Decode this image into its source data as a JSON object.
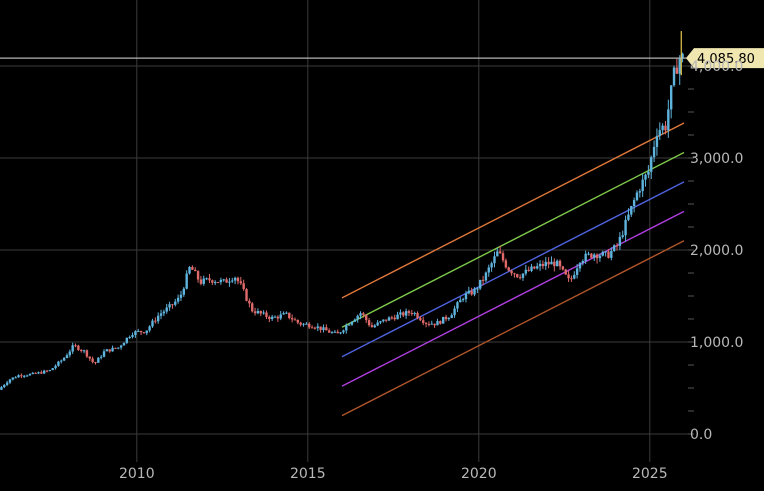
{
  "chart_data": {
    "type": "candlestick",
    "title": "",
    "xlabel": "",
    "ylabel": "",
    "x_ticks": [
      "2010",
      "2015",
      "2020",
      "2025"
    ],
    "y_ticks": [
      "0.0",
      "1,000.0",
      "2,000.0",
      "3,000.0",
      "4,000.0"
    ],
    "y_range": [
      -480,
      4530
    ],
    "x_range": [
      2006.0,
      2026.0
    ],
    "grid": true,
    "current_price_label": "4,085.80",
    "current_price": 4085.8,
    "colors": {
      "up": "#5fb4de",
      "down": "#e06a6a",
      "grid": "#3b3b3b",
      "price_line": "#b4b4b4",
      "price_tag": "#f0e6b0"
    },
    "price_series": [
      [
        2006.0,
        480
      ],
      [
        2006.3,
        590
      ],
      [
        2006.6,
        640
      ],
      [
        2007.0,
        650
      ],
      [
        2007.5,
        690
      ],
      [
        2007.9,
        820
      ],
      [
        2008.2,
        960
      ],
      [
        2008.5,
        900
      ],
      [
        2008.8,
        760
      ],
      [
        2009.1,
        900
      ],
      [
        2009.5,
        940
      ],
      [
        2009.9,
        1100
      ],
      [
        2010.3,
        1120
      ],
      [
        2010.7,
        1300
      ],
      [
        2011.0,
        1380
      ],
      [
        2011.3,
        1480
      ],
      [
        2011.6,
        1820
      ],
      [
        2011.9,
        1650
      ],
      [
        2012.2,
        1680
      ],
      [
        2012.6,
        1650
      ],
      [
        2012.9,
        1720
      ],
      [
        2013.1,
        1600
      ],
      [
        2013.4,
        1350
      ],
      [
        2013.7,
        1300
      ],
      [
        2014.0,
        1260
      ],
      [
        2014.4,
        1300
      ],
      [
        2014.8,
        1200
      ],
      [
        2015.2,
        1180
      ],
      [
        2015.6,
        1120
      ],
      [
        2015.9,
        1080
      ],
      [
        2016.3,
        1230
      ],
      [
        2016.6,
        1320
      ],
      [
        2016.9,
        1160
      ],
      [
        2017.3,
        1240
      ],
      [
        2017.7,
        1290
      ],
      [
        2018.1,
        1330
      ],
      [
        2018.5,
        1210
      ],
      [
        2018.8,
        1200
      ],
      [
        2019.2,
        1290
      ],
      [
        2019.6,
        1500
      ],
      [
        2019.9,
        1550
      ],
      [
        2020.2,
        1700
      ],
      [
        2020.6,
        1980
      ],
      [
        2020.9,
        1800
      ],
      [
        2021.2,
        1720
      ],
      [
        2021.6,
        1790
      ],
      [
        2022.0,
        1850
      ],
      [
        2022.3,
        1860
      ],
      [
        2022.7,
        1650
      ],
      [
        2023.0,
        1900
      ],
      [
        2023.4,
        1960
      ],
      [
        2023.8,
        1940
      ],
      [
        2024.1,
        2050
      ],
      [
        2024.4,
        2350
      ],
      [
        2024.7,
        2650
      ],
      [
        2025.0,
        2850
      ],
      [
        2025.25,
        3300
      ],
      [
        2025.5,
        3350
      ],
      [
        2025.75,
        3900
      ],
      [
        2025.9,
        4085.8
      ]
    ],
    "channel_lines": [
      {
        "color": "#e0783a",
        "start": [
          2016.0,
          1480
        ],
        "end": [
          2026.0,
          3380
        ]
      },
      {
        "color": "#7ec84a",
        "start": [
          2016.0,
          1160
        ],
        "end": [
          2026.0,
          3060
        ]
      },
      {
        "color": "#4f63e0",
        "start": [
          2016.0,
          840
        ],
        "end": [
          2026.0,
          2740
        ]
      },
      {
        "color": "#b03ee0",
        "start": [
          2016.0,
          520
        ],
        "end": [
          2026.0,
          2420
        ]
      },
      {
        "color": "#b0552a",
        "start": [
          2016.0,
          200
        ],
        "end": [
          2026.0,
          2100
        ]
      }
    ]
  }
}
